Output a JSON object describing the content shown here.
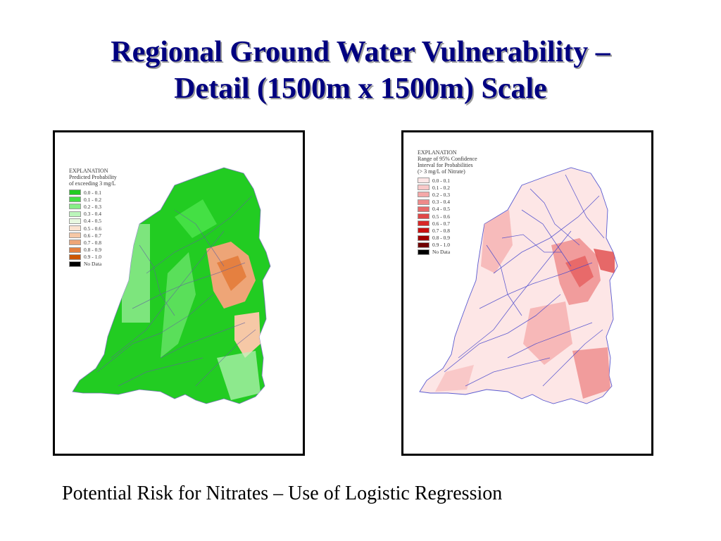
{
  "slide": {
    "title_line1": "Regional Ground Water Vulnerability –",
    "title_line2": "Detail (1500m x 1500m) Scale",
    "caption": "Potential Risk for Nitrates – Use of Logistic Regression"
  },
  "left_map": {
    "legend_title": "EXPLANATION",
    "legend_subtitle_1": "Predicted Probability",
    "legend_subtitle_2": "of exceeding 3 mg/L",
    "classes": [
      {
        "label": "0.0 - 0.1",
        "color": "#22cc22"
      },
      {
        "label": "0.1 - 0.2",
        "color": "#44e044"
      },
      {
        "label": "0.2 - 0.3",
        "color": "#88ee88"
      },
      {
        "label": "0.3 - 0.4",
        "color": "#bbf5bb"
      },
      {
        "label": "0.4 - 0.5",
        "color": "#e8f8e0"
      },
      {
        "label": "0.5 - 0.6",
        "color": "#fbe3d0"
      },
      {
        "label": "0.6 - 0.7",
        "color": "#f6c8a6"
      },
      {
        "label": "0.7 - 0.8",
        "color": "#eea577"
      },
      {
        "label": "0.8 - 0.9",
        "color": "#e58040"
      },
      {
        "label": "0.9 - 1.0",
        "color": "#cc5500"
      },
      {
        "label": "No Data",
        "color": "#000000"
      }
    ]
  },
  "right_map": {
    "legend_title": "EXPLANATION",
    "legend_subtitle_1": "Range of 95% Confidence",
    "legend_subtitle_2": "Interval for Probabilities",
    "legend_subtitle_3": "(> 3 mg/L of Nitrate)",
    "classes": [
      {
        "label": "0.0 - 0.1",
        "color": "#fde6e6"
      },
      {
        "label": "0.1 - 0.2",
        "color": "#f9c8c8"
      },
      {
        "label": "0.2 - 0.3",
        "color": "#f4a8a8"
      },
      {
        "label": "0.3 - 0.4",
        "color": "#ee8a8a"
      },
      {
        "label": "0.4 - 0.5",
        "color": "#e86a6a"
      },
      {
        "label": "0.5 - 0.6",
        "color": "#e04848"
      },
      {
        "label": "0.6 - 0.7",
        "color": "#d82828"
      },
      {
        "label": "0.7 - 0.8",
        "color": "#c81010"
      },
      {
        "label": "0.8 - 0.9",
        "color": "#a00000"
      },
      {
        "label": "0.9 - 1.0",
        "color": "#700000"
      },
      {
        "label": "No Data",
        "color": "#000000"
      }
    ]
  }
}
